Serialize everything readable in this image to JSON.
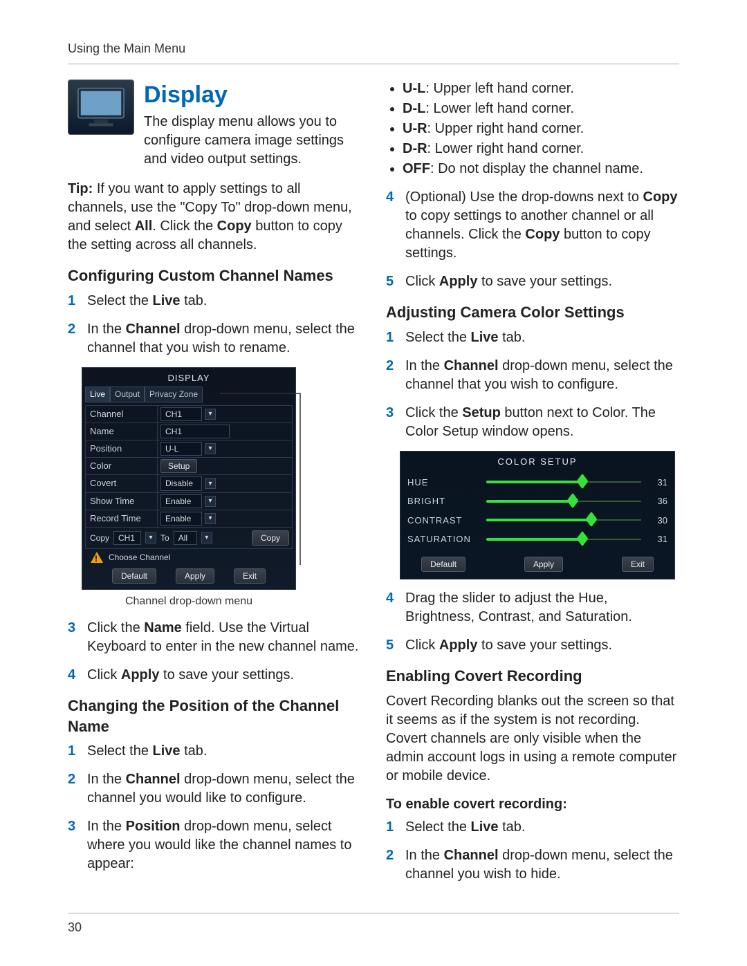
{
  "header": "Using the Main Menu",
  "page_number": "30",
  "title": "Display",
  "intro": "The display menu allows you to configure camera image settings and video output settings.",
  "tip_label": "Tip:",
  "tip_text": " If you want to apply settings to all channels, use the \"Copy To\" drop-down menu, and select ",
  "tip_all": "All",
  "tip_text2": ". Click the ",
  "tip_copy": "Copy",
  "tip_text3": " button to copy the setting across all channels.",
  "sec1": "Configuring Custom Channel Names",
  "s1_1a": "Select the ",
  "s1_1b": "Live",
  "s1_1c": " tab.",
  "s1_2a": "In the ",
  "s1_2b": "Channel",
  "s1_2c": " drop-down menu, select the channel that you wish to rename.",
  "display_caption": "Channel drop-down menu",
  "s1_3a": "Click the ",
  "s1_3b": "Name",
  "s1_3c": " field. Use the Virtual Keyboard to enter in the new channel name.",
  "s1_4a": "Click ",
  "s1_4b": "Apply",
  "s1_4c": " to save your settings.",
  "sec2": "Changing the Position of the Channel Name",
  "s2_1a": "Select the ",
  "s2_1b": "Live",
  "s2_1c": " tab.",
  "s2_2a": "In the ",
  "s2_2b": "Channel",
  "s2_2c": " drop-down menu, select the channel you would like to configure.",
  "s2_3a": "In the ",
  "s2_3b": "Position",
  "s2_3c": " drop-down menu, select where you would like the channel names to appear:",
  "pos_ul_b": "U-L",
  "pos_ul": ": Upper left hand corner.",
  "pos_dl_b": "D-L",
  "pos_dl": ": Lower left hand corner.",
  "pos_ur_b": "U-R",
  "pos_ur": ": Upper right hand corner.",
  "pos_dr_b": "D-R",
  "pos_dr": ": Lower right hand corner.",
  "pos_off_b": "OFF",
  "pos_off": ": Do not display the channel name.",
  "s2_4a": "(Optional) Use the drop-downs next to ",
  "s2_4b": "Copy",
  "s2_4c": " to copy settings to another channel or all channels. Click the ",
  "s2_4d": "Copy",
  "s2_4e": " button to copy settings.",
  "s2_5a": "Click ",
  "s2_5b": "Apply",
  "s2_5c": " to save your settings.",
  "sec3": "Adjusting Camera Color Settings",
  "s3_1a": "Select the ",
  "s3_1b": "Live",
  "s3_1c": " tab.",
  "s3_2a": "In the ",
  "s3_2b": "Channel",
  "s3_2c": " drop-down menu, select the channel that you wish to configure.",
  "s3_3a": "Click the ",
  "s3_3b": "Setup",
  "s3_3c": " button next to Color. The Color Setup window opens.",
  "s3_4": "Drag the slider to adjust the Hue, Brightness, Contrast, and Saturation.",
  "s3_5a": "Click ",
  "s3_5b": "Apply",
  "s3_5c": " to save your settings.",
  "sec4": "Enabling Covert Recording",
  "sec4_intro": "Covert Recording blanks out the screen so that it seems as if the system is not recording. Covert channels are only visible when the admin account logs in using a remote computer or mobile device.",
  "sec4_sub": "To enable covert recording:",
  "s4_1a": "Select the ",
  "s4_1b": "Live",
  "s4_1c": " tab.",
  "s4_2a": "In the ",
  "s4_2b": "Channel",
  "s4_2c": " drop-down menu, select the channel you wish to hide.",
  "display_dialog": {
    "title": "DISPLAY",
    "tabs": [
      "Live",
      "Output",
      "Privacy Zone"
    ],
    "rows": {
      "channel": {
        "label": "Channel",
        "value": "CH1"
      },
      "name": {
        "label": "Name",
        "value": "CH1"
      },
      "position": {
        "label": "Position",
        "value": "U-L"
      },
      "color": {
        "label": "Color",
        "value": "Setup"
      },
      "covert": {
        "label": "Covert",
        "value": "Disable"
      },
      "showtime": {
        "label": "Show Time",
        "value": "Enable"
      },
      "rectime": {
        "label": "Record Time",
        "value": "Enable"
      }
    },
    "copy_label": "Copy",
    "copy_from": "CH1",
    "copy_to_label": "To",
    "copy_to": "All",
    "copy_btn": "Copy",
    "choose": "Choose Channel",
    "btn_default": "Default",
    "btn_apply": "Apply",
    "btn_exit": "Exit"
  },
  "color_setup": {
    "title": "COLOR SETUP",
    "sliders": [
      {
        "label": "HUE",
        "value": 31,
        "pct": 62
      },
      {
        "label": "BRIGHT",
        "value": 36,
        "pct": 56
      },
      {
        "label": "CONTRAST",
        "value": 30,
        "pct": 68
      },
      {
        "label": "SATURATION",
        "value": 31,
        "pct": 62
      }
    ],
    "btn_default": "Default",
    "btn_apply": "Apply",
    "btn_exit": "Exit",
    "track_color": "#3a5a3a",
    "fill_color": "#36e23a"
  }
}
